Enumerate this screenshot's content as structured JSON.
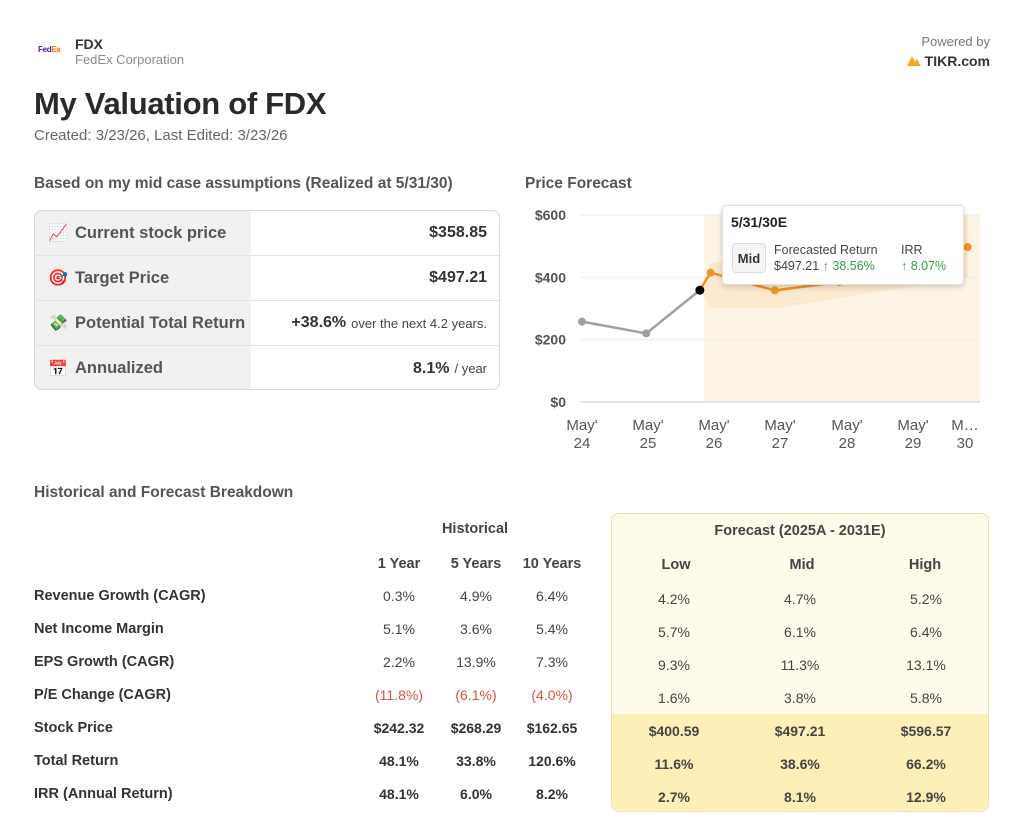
{
  "header": {
    "logo_fed": "Fed",
    "logo_ex": "Ex",
    "ticker": "FDX",
    "company": "FedEx Corporation",
    "powered_label": "Powered by",
    "tikr_label": "TIKR.com"
  },
  "title": "My Valuation of FDX",
  "meta": "Created: 3/23/26, Last Edited: 3/23/26",
  "summary": {
    "heading": "Based on my mid case assumptions (Realized at 5/31/30)",
    "rows": [
      {
        "icon": "chart-increasing-icon",
        "emoji": "📈",
        "label": "Current stock price",
        "value": "$358.85",
        "suffix": ""
      },
      {
        "icon": "target-icon",
        "emoji": "🎯",
        "label": "Target Price",
        "value": "$497.21",
        "suffix": ""
      },
      {
        "icon": "money-wings-icon",
        "emoji": "💸",
        "label": "Potential Total Return",
        "value": "+38.6%",
        "suffix": "over the next 4.2 years."
      },
      {
        "icon": "calendar-icon",
        "emoji": "📅",
        "label": "Annualized",
        "value": "8.1%",
        "suffix": "/ year"
      }
    ]
  },
  "forecast_heading": "Price Forecast",
  "tooltip": {
    "date": "5/31/30E",
    "badge": "Mid",
    "col1_title": "Forecasted Return",
    "col1_price": "$497.21",
    "col1_pct": "↑ 38.56%",
    "col2_title": "IRR",
    "col2_pct": "↑ 8.07%"
  },
  "chart_data": {
    "type": "line",
    "title": "Price Forecast",
    "y_ticks": [
      "$600",
      "$400",
      "$200",
      "$0"
    ],
    "ylim": [
      0,
      600
    ],
    "x_ticks": [
      "May' 24",
      "May' 25",
      "May' 26",
      "May' 27",
      "May' 28",
      "May' 29",
      "M… 30"
    ],
    "historical": {
      "x": [
        "May' 24",
        "May' 25",
        "Mar' 26"
      ],
      "y": [
        258,
        220,
        358.85
      ]
    },
    "forecast_mid": {
      "x": [
        "Mar' 26",
        "May' 26",
        "May' 27",
        "May' 28",
        "May' 29",
        "May' 30"
      ],
      "y": [
        358.85,
        415,
        358,
        385,
        430,
        497.21
      ]
    },
    "forecast_high": {
      "x": [
        "May' 26",
        "May' 30"
      ],
      "y": [
        445,
        597
      ]
    },
    "forecast_low": {
      "x": [
        "May' 26",
        "May' 27",
        "May' 30"
      ],
      "y": [
        300,
        300,
        401
      ]
    },
    "colors": {
      "historical": "#a0a0a0",
      "forecast": "#f39224",
      "band": "#fde6c8",
      "current": "#000000"
    }
  },
  "breakdown": {
    "heading": "Historical and Forecast Breakdown",
    "historical_label": "Historical",
    "forecast_label": "Forecast (2025A - 2031E)",
    "hist_cols": [
      "1 Year",
      "5 Years",
      "10 Years"
    ],
    "fc_cols": [
      "Low",
      "Mid",
      "High"
    ],
    "rows": [
      {
        "label": "Revenue Growth (CAGR)",
        "hist": [
          "0.3%",
          "4.9%",
          "6.4%"
        ],
        "fc": [
          "4.2%",
          "4.7%",
          "5.2%"
        ]
      },
      {
        "label": "Net Income Margin",
        "hist": [
          "5.1%",
          "3.6%",
          "5.4%"
        ],
        "fc": [
          "5.7%",
          "6.1%",
          "6.4%"
        ]
      },
      {
        "label": "EPS Growth (CAGR)",
        "hist": [
          "2.2%",
          "13.9%",
          "7.3%"
        ],
        "fc": [
          "9.3%",
          "11.3%",
          "13.1%"
        ]
      },
      {
        "label": "P/E Change (CAGR)",
        "hist": [
          "(11.8%)",
          "(6.1%)",
          "(4.0%)"
        ],
        "fc": [
          "1.6%",
          "3.8%",
          "5.8%"
        ]
      },
      {
        "label": "Stock Price",
        "hist": [
          "$242.32",
          "$268.29",
          "$162.65"
        ],
        "fc": [
          "$400.59",
          "$497.21",
          "$596.57"
        ]
      },
      {
        "label": "Total Return",
        "hist": [
          "48.1%",
          "33.8%",
          "120.6%"
        ],
        "fc": [
          "11.6%",
          "38.6%",
          "66.2%"
        ]
      },
      {
        "label": "IRR (Annual Return)",
        "hist": [
          "48.1%",
          "6.0%",
          "8.2%"
        ],
        "fc": [
          "2.7%",
          "8.1%",
          "12.9%"
        ]
      }
    ]
  }
}
